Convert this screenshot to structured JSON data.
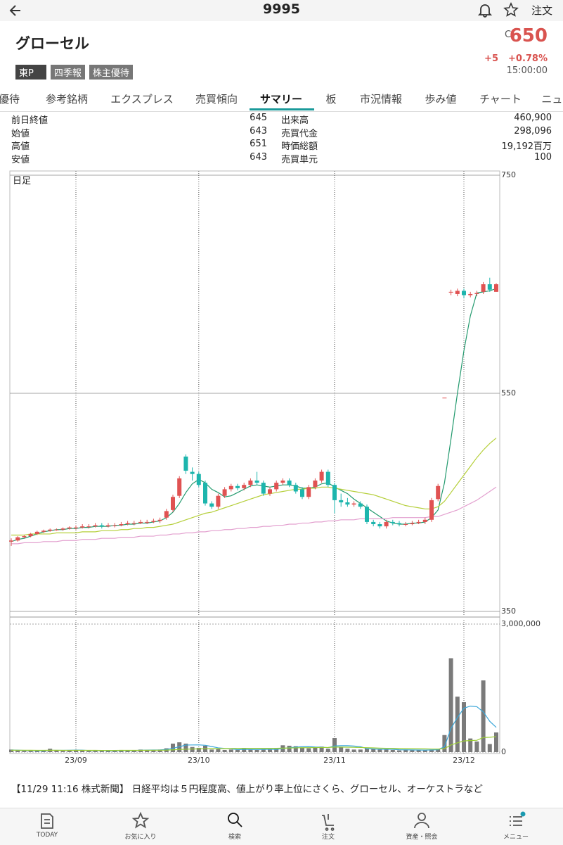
{
  "header": {
    "title": "9995",
    "order": "注文"
  },
  "stock": {
    "name": "グローセル",
    "flag": "C",
    "price": "650",
    "change": "+5",
    "change_pct": "+0.78%",
    "time": "15:00:00",
    "tags": [
      "東P",
      "四季報",
      "株主優待"
    ]
  },
  "tabs": [
    "株主優待",
    "参考銘柄",
    "エクスプレス",
    "売買傾向",
    "サマリー",
    "板",
    "市況情報",
    "歩み値",
    "チャート",
    "ニュース"
  ],
  "active_tab": 4,
  "quote": {
    "left": [
      [
        "前日終値",
        "645"
      ],
      [
        "始値",
        "643"
      ],
      [
        "高値",
        "651"
      ],
      [
        "安値",
        "643"
      ]
    ],
    "right": [
      [
        "出来高",
        "460,900"
      ],
      [
        "売買代金",
        "298,096"
      ],
      [
        "時価総額",
        "19,192百万"
      ],
      [
        "売買単元",
        "100"
      ]
    ]
  },
  "chart_data": [
    {
      "type": "candlestick",
      "label": "日足",
      "categories": [
        null,
        null,
        null,
        null,
        null,
        null,
        null,
        null,
        null,
        null,
        "23/09",
        null,
        null,
        null,
        null,
        null,
        null,
        null,
        null,
        null,
        null,
        null,
        null,
        null,
        null,
        null,
        null,
        null,
        null,
        "23/10",
        null,
        null,
        null,
        null,
        null,
        null,
        null,
        null,
        null,
        null,
        null,
        null,
        null,
        null,
        null,
        null,
        null,
        null,
        null,
        null,
        "23/11",
        null,
        null,
        null,
        null,
        null,
        null,
        null,
        null,
        null,
        null,
        null,
        null,
        null,
        null,
        null,
        null,
        null,
        null,
        null,
        "23/12",
        null,
        null,
        null,
        null,
        null
      ],
      "open": [
        414,
        415,
        418,
        419,
        421,
        423,
        424,
        425,
        425,
        426,
        427,
        427,
        428,
        428,
        429,
        428,
        429,
        429,
        430,
        431,
        431,
        432,
        432,
        433,
        436,
        443,
        456,
        492,
        478,
        476,
        468,
        449,
        446,
        456,
        462,
        465,
        463,
        466,
        470,
        468,
        458,
        462,
        468,
        470,
        466,
        462,
        455,
        464,
        470,
        478,
        466,
        452,
        450,
        448,
        449,
        446,
        432,
        430,
        428,
        432,
        431,
        430,
        430,
        431,
        432,
        434,
        453,
        546,
        643,
        641,
        644,
        640,
        641,
        643,
        650,
        643
      ],
      "high": [
        417,
        419,
        420,
        422,
        424,
        425,
        426,
        426,
        427,
        428,
        429,
        430,
        430,
        431,
        431,
        431,
        431,
        432,
        433,
        433,
        434,
        434,
        435,
        436,
        444,
        457,
        474,
        494,
        482,
        478,
        470,
        451,
        458,
        464,
        467,
        467,
        468,
        472,
        478,
        470,
        464,
        470,
        472,
        472,
        468,
        464,
        466,
        472,
        480,
        480,
        468,
        458,
        454,
        451,
        451,
        448,
        434,
        432,
        434,
        434,
        433,
        432,
        433,
        434,
        436,
        454,
        467,
        546,
        645,
        646,
        646,
        643,
        644,
        652,
        656,
        651
      ],
      "low": [
        410,
        414,
        417,
        418,
        420,
        422,
        423,
        424,
        424,
        425,
        425,
        426,
        426,
        427,
        426,
        427,
        427,
        428,
        429,
        429,
        430,
        430,
        431,
        431,
        434,
        441,
        454,
        476,
        470,
        464,
        447,
        444,
        444,
        454,
        460,
        461,
        461,
        464,
        466,
        456,
        456,
        460,
        466,
        464,
        458,
        453,
        453,
        462,
        468,
        464,
        440,
        446,
        446,
        446,
        444,
        430,
        428,
        426,
        426,
        429,
        428,
        428,
        429,
        430,
        430,
        432,
        451,
        546,
        640,
        639,
        637,
        638,
        639,
        641,
        643,
        643
      ],
      "close": [
        415,
        418,
        419,
        421,
        423,
        424,
        425,
        425,
        426,
        427,
        427,
        428,
        428,
        429,
        428,
        429,
        429,
        430,
        431,
        431,
        432,
        432,
        433,
        434,
        442,
        455,
        472,
        479,
        476,
        466,
        449,
        446,
        456,
        462,
        465,
        463,
        466,
        470,
        468,
        458,
        462,
        468,
        470,
        466,
        460,
        455,
        464,
        470,
        478,
        466,
        452,
        450,
        448,
        449,
        446,
        432,
        430,
        428,
        432,
        431,
        430,
        430,
        431,
        432,
        434,
        452,
        465,
        546,
        643,
        644,
        640,
        641,
        642,
        650,
        645,
        650
      ],
      "up_color": "#e05252",
      "down_color": "#1db5ad",
      "series": [
        {
          "color": "#239a6e",
          "values": [
            414,
            416,
            417,
            419,
            421,
            423,
            424,
            425,
            425,
            426,
            426,
            427,
            427,
            428,
            428,
            428,
            429,
            429,
            430,
            430,
            431,
            431,
            432,
            433,
            436,
            441,
            449,
            459,
            467,
            471,
            468,
            462,
            459,
            455,
            456,
            459,
            462,
            465,
            466,
            465,
            464,
            465,
            466,
            466,
            465,
            463,
            463,
            464,
            467,
            468,
            464,
            461,
            458,
            453,
            449,
            445,
            441,
            437,
            433,
            431,
            430,
            430,
            431,
            431,
            432,
            436,
            443,
            468,
            508,
            550,
            589,
            621,
            642,
            643,
            644,
            646
          ]
        },
        {
          "color": "#b5cf3a",
          "values": [
            420,
            420,
            420,
            421,
            421,
            421,
            421,
            422,
            422,
            422,
            422,
            423,
            423,
            423,
            424,
            424,
            424,
            425,
            425,
            426,
            426,
            427,
            427,
            428,
            429,
            430,
            432,
            434,
            436,
            438,
            440,
            441,
            443,
            445,
            447,
            449,
            451,
            453,
            455,
            457,
            458,
            459,
            460,
            461,
            462,
            462,
            463,
            463,
            464,
            464,
            463,
            462,
            461,
            460,
            459,
            458,
            457,
            455,
            453,
            451,
            449,
            447,
            446,
            445,
            444,
            444,
            446,
            451,
            459,
            467,
            475,
            483,
            491,
            498,
            504,
            509
          ]
        },
        {
          "color": "#e3a0cf",
          "values": [
            412,
            412,
            413,
            413,
            413,
            414,
            414,
            414,
            415,
            415,
            415,
            416,
            416,
            416,
            417,
            417,
            417,
            418,
            418,
            418,
            419,
            419,
            419,
            420,
            420,
            421,
            421,
            422,
            422,
            423,
            423,
            424,
            424,
            425,
            425,
            426,
            426,
            427,
            427,
            428,
            428,
            429,
            429,
            430,
            430,
            431,
            431,
            432,
            432,
            433,
            433,
            434,
            434,
            434,
            435,
            435,
            435,
            435,
            435,
            436,
            436,
            436,
            436,
            436,
            436,
            437,
            437,
            439,
            441,
            443,
            446,
            449,
            452,
            456,
            460,
            464
          ]
        }
      ],
      "ylim": [
        350,
        750
      ],
      "yticks": [
        350,
        550,
        750
      ]
    },
    {
      "type": "bar",
      "color": "#7a7a7a",
      "values": [
        60000,
        40000,
        30000,
        30000,
        30000,
        30000,
        80000,
        40000,
        30000,
        40000,
        50000,
        40000,
        30000,
        40000,
        30000,
        30000,
        30000,
        50000,
        40000,
        40000,
        60000,
        50000,
        50000,
        60000,
        90000,
        200000,
        230000,
        200000,
        120000,
        100000,
        150000,
        60000,
        70000,
        50000,
        60000,
        50000,
        90000,
        60000,
        50000,
        70000,
        60000,
        80000,
        160000,
        150000,
        140000,
        110000,
        90000,
        110000,
        130000,
        80000,
        330000,
        110000,
        80000,
        60000,
        60000,
        90000,
        70000,
        60000,
        60000,
        50000,
        40000,
        60000,
        50000,
        50000,
        40000,
        60000,
        80000,
        400000,
        2200000,
        1300000,
        1170000,
        320000,
        250000,
        1680000,
        190000,
        460900
      ],
      "series": [
        {
          "color": "#3aa6d8",
          "values": [
            50000,
            45000,
            40000,
            38000,
            35000,
            32000,
            42000,
            42000,
            42000,
            44000,
            48000,
            46000,
            38000,
            40000,
            38000,
            34000,
            34000,
            36000,
            38000,
            38000,
            44000,
            48000,
            50000,
            52000,
            62000,
            90000,
            126000,
            166000,
            168000,
            170000,
            160000,
            132000,
            100000,
            86000,
            78000,
            58000,
            66000,
            62000,
            62000,
            64000,
            66000,
            64000,
            84000,
            104000,
            118000,
            128000,
            130000,
            120000,
            116000,
            104000,
            144000,
            150000,
            150000,
            142000,
            128000,
            82000,
            74000,
            68000,
            68000,
            66000,
            56000,
            54000,
            52000,
            50000,
            48000,
            52000,
            56000,
            126000,
            556000,
            808000,
            1030000,
            1078000,
            1064000,
            944000,
            722000,
            580000
          ]
        },
        {
          "color": "#9acd32",
          "values": [
            45000,
            44000,
            44000,
            43000,
            42000,
            42000,
            43000,
            43000,
            42000,
            42000,
            42000,
            42000,
            41000,
            41000,
            40000,
            40000,
            40000,
            41000,
            41000,
            41000,
            42000,
            43000,
            44000,
            45000,
            47000,
            54000,
            62000,
            69000,
            73000,
            76000,
            81000,
            82000,
            83000,
            84000,
            85000,
            86000,
            88000,
            89000,
            88000,
            88000,
            88000,
            89000,
            93000,
            97000,
            100000,
            103000,
            104000,
            106000,
            108000,
            109000,
            119000,
            117000,
            115000,
            112000,
            108000,
            104000,
            99000,
            94000,
            90000,
            87000,
            84000,
            82000,
            80000,
            78000,
            76000,
            73000,
            72000,
            83000,
            168000,
            217000,
            262000,
            270000,
            277000,
            342000,
            348000,
            364000
          ]
        }
      ],
      "ylim": [
        0,
        3000000
      ],
      "yticks": [
        0,
        {
          "value": 3000000,
          "label": "3,000,000"
        }
      ]
    }
  ],
  "news": "【11/29 11:16 株式新聞】 日経平均は５円程度高、値上がり率上位にさくら、グローセル、オーケストラなど",
  "nav": [
    "TODAY",
    "お気に入り",
    "検索",
    "注文",
    "資産・照会",
    "メニュー"
  ]
}
